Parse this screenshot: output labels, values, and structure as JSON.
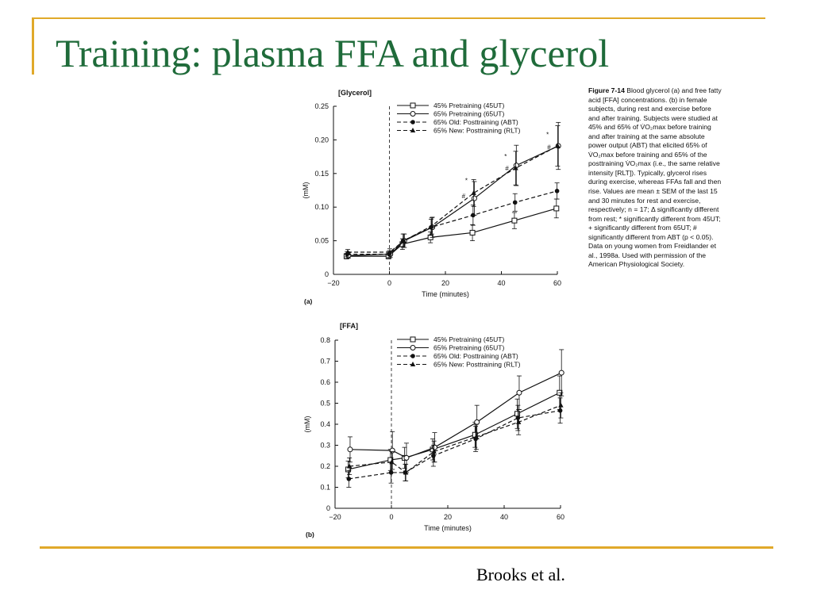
{
  "slide": {
    "title": "Training: plasma FFA and glycerol",
    "credit": "Brooks et al."
  },
  "caption": {
    "head": "Figure 7-14",
    "text": "Blood glycerol (a) and free fatty acid [FFA] concentrations. (b) in female subjects, during rest and exercise before and after training. Subjects were studied at 45% and 65% of V̇O₂max before training and after training at the same absolute power output (ABT) that elicited 65% of V̇O₂max before training and 65% of the posttraining V̇O₂max (i.e., the same relative intensity [RLT]). Typically, glycerol rises during exercise, whereas FFAs fall and then rise. Values are mean ± SEM of the last 15 and 30 minutes for rest and exercise, respectively; n = 17; Δ significantly different from rest; * significantly different from 45UT; + significantly different from 65UT; # significantly different from ABT (p < 0.05). Data on young women from Freidlander et al., 1998a. Used with permission of the American Physiological Society."
  },
  "colors": {
    "title": "#1f6b3a",
    "accent": "#e0a92a",
    "ink": "#111111"
  },
  "chart_data": [
    {
      "type": "line",
      "panel_label": "(a)",
      "title": "[Glycerol]",
      "ylabel": "(mM)",
      "xlabel": "Time (minutes)",
      "xlim": [
        -20,
        60
      ],
      "ylim": [
        0,
        0.25
      ],
      "xticks": [
        -20,
        0,
        20,
        40,
        60
      ],
      "xtick_labels": [
        "−20",
        "0",
        "20",
        "40",
        "60"
      ],
      "yticks": [
        0,
        0.05,
        0.1,
        0.15,
        0.2,
        0.25
      ],
      "ytick_labels": [
        "0",
        "0.05",
        "0.10",
        "0.15",
        "0.20",
        "0.25"
      ],
      "x": [
        -15,
        0,
        5,
        15,
        30,
        45,
        60
      ],
      "series": [
        {
          "name": "45% Pretraining (45UT)",
          "marker": "square",
          "dash": false,
          "values": [
            0.027,
            0.027,
            0.045,
            0.055,
            0.062,
            0.08,
            0.098
          ],
          "err": [
            0.004,
            0.004,
            0.008,
            0.008,
            0.012,
            0.012,
            0.014
          ]
        },
        {
          "name": "65% Pretraining (65UT)",
          "marker": "circle",
          "dash": false,
          "values": [
            0.028,
            0.03,
            0.05,
            0.07,
            0.113,
            0.162,
            0.191
          ],
          "err": [
            0.004,
            0.005,
            0.01,
            0.015,
            0.025,
            0.03,
            0.035
          ]
        },
        {
          "name": "65% Old: Posttraining (ABT)",
          "marker": "dot",
          "dash": true,
          "values": [
            0.03,
            0.03,
            0.05,
            0.07,
            0.088,
            0.107,
            0.124
          ],
          "err": [
            0.004,
            0.005,
            0.01,
            0.012,
            0.015,
            0.013,
            0.012
          ]
        },
        {
          "name": "65% New: Posttraining (RLT)",
          "marker": "triangle",
          "dash": true,
          "values": [
            0.033,
            0.033,
            0.05,
            0.072,
            0.121,
            0.158,
            0.191
          ],
          "err": [
            0.004,
            0.005,
            0.01,
            0.012,
            0.02,
            0.025,
            0.03
          ]
        }
      ],
      "annotations": [
        {
          "text": "*",
          "x": 27.5,
          "y": 0.14
        },
        {
          "text": "#",
          "x": 26.5,
          "y": 0.117
        },
        {
          "text": "*",
          "x": 41.5,
          "y": 0.176
        },
        {
          "text": "#",
          "x": 42.0,
          "y": 0.158
        },
        {
          "text": "*",
          "x": 56.5,
          "y": 0.208
        },
        {
          "text": "#",
          "x": 57.0,
          "y": 0.189
        }
      ]
    },
    {
      "type": "line",
      "panel_label": "(b)",
      "title": "[FFA]",
      "ylabel": "(mM)",
      "xlabel": "Time (minutes)",
      "xlim": [
        -20,
        60
      ],
      "ylim": [
        0,
        0.8
      ],
      "xticks": [
        -20,
        0,
        20,
        40,
        60
      ],
      "xtick_labels": [
        "−20",
        "0",
        "20",
        "40",
        "60"
      ],
      "yticks": [
        0,
        0.1,
        0.2,
        0.3,
        0.4,
        0.5,
        0.6,
        0.7,
        0.8
      ],
      "ytick_labels": [
        "0",
        "0.1",
        "0.2",
        "0.3",
        "0.4",
        "0.5",
        "0.6",
        "0.7",
        "0.8"
      ],
      "x": [
        -15,
        0,
        5,
        15,
        30,
        45,
        60
      ],
      "series": [
        {
          "name": "45% Pretraining (45UT)",
          "marker": "square",
          "dash": false,
          "values": [
            0.185,
            0.23,
            0.24,
            0.28,
            0.35,
            0.45,
            0.55
          ],
          "err": [
            0.04,
            0.05,
            0.05,
            0.05,
            0.06,
            0.07,
            0.08
          ]
        },
        {
          "name": "65% Pretraining (65UT)",
          "marker": "circle",
          "dash": false,
          "values": [
            0.28,
            0.275,
            0.24,
            0.29,
            0.41,
            0.55,
            0.645
          ],
          "err": [
            0.06,
            0.09,
            0.07,
            0.07,
            0.08,
            0.08,
            0.11
          ]
        },
        {
          "name": "65% Old: Posttraining (ABT)",
          "marker": "dot",
          "dash": true,
          "values": [
            0.14,
            0.17,
            0.17,
            0.25,
            0.33,
            0.43,
            0.465
          ],
          "err": [
            0.04,
            0.05,
            0.04,
            0.05,
            0.06,
            0.06,
            0.06
          ]
        },
        {
          "name": "65% New: Posttraining (RLT)",
          "marker": "triangle",
          "dash": true,
          "values": [
            0.2,
            0.22,
            0.17,
            0.27,
            0.34,
            0.41,
            0.49
          ],
          "err": [
            0.04,
            0.05,
            0.04,
            0.05,
            0.06,
            0.06,
            0.06
          ]
        }
      ]
    }
  ]
}
